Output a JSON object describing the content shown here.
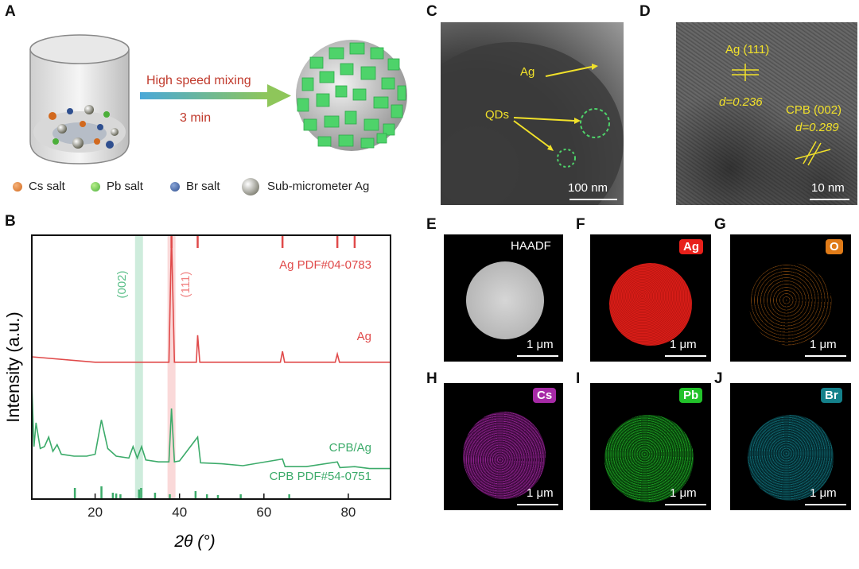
{
  "panels": {
    "A": "A",
    "B": "B",
    "C": "C",
    "D": "D",
    "E": "E",
    "F": "F",
    "G": "G",
    "H": "H",
    "I": "I",
    "J": "J"
  },
  "schematic": {
    "process_line1": "High speed mixing",
    "process_line2": "3 min",
    "legend": [
      {
        "label": "Cs salt",
        "color": "#d2691e"
      },
      {
        "label": "Pb salt",
        "color": "#4caf3a"
      },
      {
        "label": "Br salt",
        "color": "#2f4f8f"
      },
      {
        "label": "Sub-micrometer Ag",
        "color": "#7a7a68"
      }
    ]
  },
  "tem": {
    "C_labels": {
      "ag": "Ag",
      "qds": "QDs",
      "scale": "100 nm"
    },
    "D_labels": {
      "ag_plane": "Ag (111)",
      "ag_d": "d=0.236",
      "cpb_plane": "CPB (002)",
      "cpb_d": "d=0.289",
      "scale": "10 nm"
    }
  },
  "eds": {
    "E": {
      "label": "HAADF",
      "scale": "1 μm"
    },
    "F": {
      "label": "Ag",
      "color": "#e8201a",
      "scale": "1 μm"
    },
    "G": {
      "label": "O",
      "color": "#e07b18",
      "scale": "1 μm"
    },
    "H": {
      "label": "Cs",
      "color": "#a62aa6",
      "scale": "1 μm"
    },
    "I": {
      "label": "Pb",
      "color": "#22c22a",
      "scale": "1 μm"
    },
    "J": {
      "label": "Br",
      "color": "#14808a",
      "scale": "1 μm"
    }
  },
  "chart_data": {
    "type": "line",
    "xlabel": "2θ (°)",
    "ylabel": "Intensity (a.u.)",
    "xlim": [
      5,
      90
    ],
    "xticks": [
      20,
      40,
      60,
      80
    ],
    "highlight_bands": [
      {
        "label": "(002)",
        "center": 30.4,
        "color": "#5cc08a"
      },
      {
        "label": "(111)",
        "center": 38.1,
        "color": "#f08080"
      }
    ],
    "series": [
      {
        "name": "Ag",
        "color": "#e04a4a",
        "x": [
          5,
          20,
          30,
          37.5,
          38.1,
          38.8,
          44.0,
          44.3,
          44.8,
          55,
          63.9,
          64.4,
          64.9,
          76.9,
          77.4,
          77.9,
          81.0,
          81.5,
          82.0,
          90
        ],
        "y": [
          0.1,
          0.06,
          0.06,
          0.06,
          1.0,
          0.06,
          0.06,
          0.26,
          0.06,
          0.06,
          0.06,
          0.14,
          0.06,
          0.06,
          0.12,
          0.06,
          0.06,
          0.06,
          0.06,
          0.06
        ]
      },
      {
        "name": "CPB/Ag",
        "color": "#3cab6a",
        "x": [
          5,
          5.5,
          6,
          7,
          8,
          9,
          10,
          11,
          12,
          15,
          18,
          20,
          21.5,
          23,
          25,
          28,
          29,
          30,
          31,
          32,
          35,
          37.5,
          38.1,
          38.8,
          40,
          44.3,
          45,
          50,
          55,
          64.4,
          65,
          70,
          77.4,
          78,
          81.5,
          85,
          90
        ],
        "y": [
          0.95,
          0.3,
          0.55,
          0.28,
          0.3,
          0.4,
          0.25,
          0.32,
          0.22,
          0.2,
          0.2,
          0.22,
          0.58,
          0.28,
          0.2,
          0.18,
          0.3,
          0.18,
          0.3,
          0.16,
          0.14,
          0.14,
          0.7,
          0.14,
          0.15,
          0.4,
          0.13,
          0.12,
          0.1,
          0.17,
          0.09,
          0.09,
          0.14,
          0.08,
          0.09,
          0.07,
          0.07
        ]
      }
    ],
    "reference_lines": [
      {
        "name": "Ag PDF#04-0783",
        "color": "#e04a4a",
        "x": [
          38.1,
          44.3,
          64.4,
          77.4,
          81.5
        ]
      },
      {
        "name": "CPB PDF#54-0751",
        "color": "#3cab6a",
        "x": [
          15.2,
          21.5,
          24.2,
          25.0,
          26.0,
          30.4,
          30.9,
          34.2,
          37.7,
          43.8,
          46.5,
          49.1,
          54.5,
          66.0
        ]
      }
    ]
  }
}
